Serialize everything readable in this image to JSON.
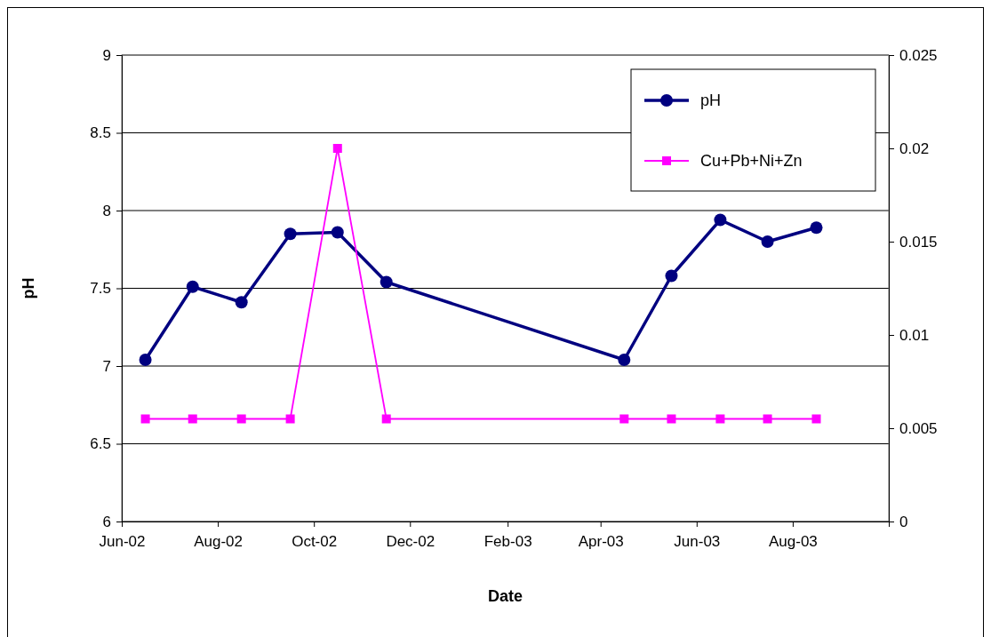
{
  "chart_data": {
    "type": "line",
    "xlabel": "Date",
    "ylabel": "pH",
    "xlim": [
      "2002-06-01",
      "2003-10-01"
    ],
    "xticks": [
      {
        "value": "2002-06-01",
        "label": "Jun-02"
      },
      {
        "value": "2002-08-01",
        "label": "Aug-02"
      },
      {
        "value": "2002-10-01",
        "label": "Oct-02"
      },
      {
        "value": "2002-12-01",
        "label": "Dec-02"
      },
      {
        "value": "2003-02-01",
        "label": "Feb-03"
      },
      {
        "value": "2003-04-01",
        "label": "Apr-03"
      },
      {
        "value": "2003-06-01",
        "label": "Jun-03"
      },
      {
        "value": "2003-08-01",
        "label": "Aug-03"
      },
      {
        "value": "2003-10-01",
        "label": null
      }
    ],
    "x": [
      "2002-06-16",
      "2002-07-16",
      "2002-08-16",
      "2002-09-16",
      "2002-10-16",
      "2002-11-16",
      "2003-04-16",
      "2003-05-16",
      "2003-06-16",
      "2003-07-16",
      "2003-08-16"
    ],
    "ylim": [
      6,
      9
    ],
    "yticks": [
      6,
      6.5,
      7,
      7.5,
      8,
      8.5,
      9
    ],
    "y2lim": [
      0,
      0.025
    ],
    "y2ticks": [
      0,
      0.005,
      0.01,
      0.015,
      0.02,
      0.025
    ],
    "grid": "y",
    "legend": "top right",
    "series": [
      {
        "name": "pH",
        "color": "#000080",
        "marker": "circle",
        "values": [
          7.04,
          7.51,
          7.41,
          7.85,
          7.86,
          7.54,
          7.04,
          7.58,
          7.94,
          7.8,
          7.89
        ]
      },
      {
        "name": "Cu+Pb+Ni+Zn",
        "color": "#ff00ff",
        "marker": "square",
        "axis": "y2",
        "values": [
          0.0055,
          0.0055,
          0.0055,
          0.0055,
          0.02,
          0.0055,
          0.0055,
          0.0055,
          0.0055,
          0.0055,
          0.0055
        ]
      }
    ]
  }
}
